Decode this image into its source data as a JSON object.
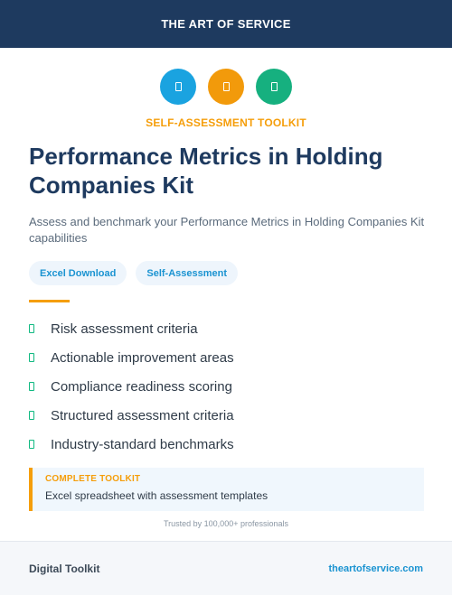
{
  "header": {
    "brand": "THE ART OF SERVICE"
  },
  "icons": [
    {
      "name": "document-icon",
      "color": "#1aa3e0"
    },
    {
      "name": "document-icon",
      "color": "#f29a0b"
    },
    {
      "name": "document-icon",
      "color": "#16b07f"
    }
  ],
  "eyebrow": "SELF-ASSESSMENT TOOLKIT",
  "title": "Performance Metrics in Holding Companies Kit",
  "subtitle": "Assess and benchmark your Performance Metrics in Holding Companies Kit capabilities",
  "tags": [
    "Excel Download",
    "Self-Assessment"
  ],
  "features": [
    "Risk assessment criteria",
    "Actionable improvement areas",
    "Compliance readiness scoring",
    "Structured assessment criteria",
    "Industry-standard benchmarks"
  ],
  "callout": {
    "title": "COMPLETE TOOLKIT",
    "text": "Excel spreadsheet with assessment templates"
  },
  "trust": "Trusted by 100,000+ professionals",
  "footer": {
    "left": "Digital Toolkit",
    "right": "theartofservice.com"
  },
  "colors": {
    "navy": "#1e3a5f",
    "accent_orange": "#f59e0b",
    "accent_blue": "#1a93d1",
    "check_green": "#10b981"
  }
}
